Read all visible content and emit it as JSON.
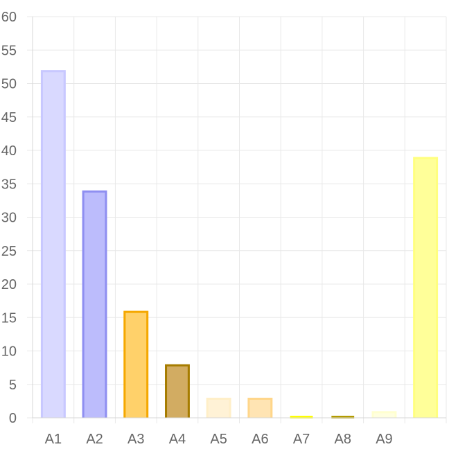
{
  "chart_data": {
    "type": "bar",
    "categories": [
      "A1",
      "A2",
      "A3",
      "A4",
      "A5",
      "A6",
      "A7",
      "A8",
      "A9",
      ""
    ],
    "values": [
      52,
      34,
      16,
      8,
      3,
      3,
      0,
      0,
      1,
      39
    ],
    "ylim": [
      0,
      60
    ],
    "y_ticks": [
      0,
      5,
      10,
      15,
      20,
      25,
      30,
      35,
      40,
      45,
      50,
      55,
      60
    ],
    "grid": true,
    "legend": false,
    "colors": {
      "fills": [
        "#d9d9ff",
        "#bcbcfc",
        "#ffd16a",
        "#d2ac62",
        "#fff2d6",
        "#ffe4b3",
        "#ffff00",
        "#c8b400",
        "#ffffe0",
        "#ffff99"
      ],
      "borders": [
        "#c8c8ff",
        "#8f8ff1",
        "#f5a800",
        "#a67c00",
        "#ffefc8",
        "#ffd68a",
        "#ffff00",
        "#b39b00",
        "#ffffd0",
        "#ffff7f"
      ]
    }
  }
}
